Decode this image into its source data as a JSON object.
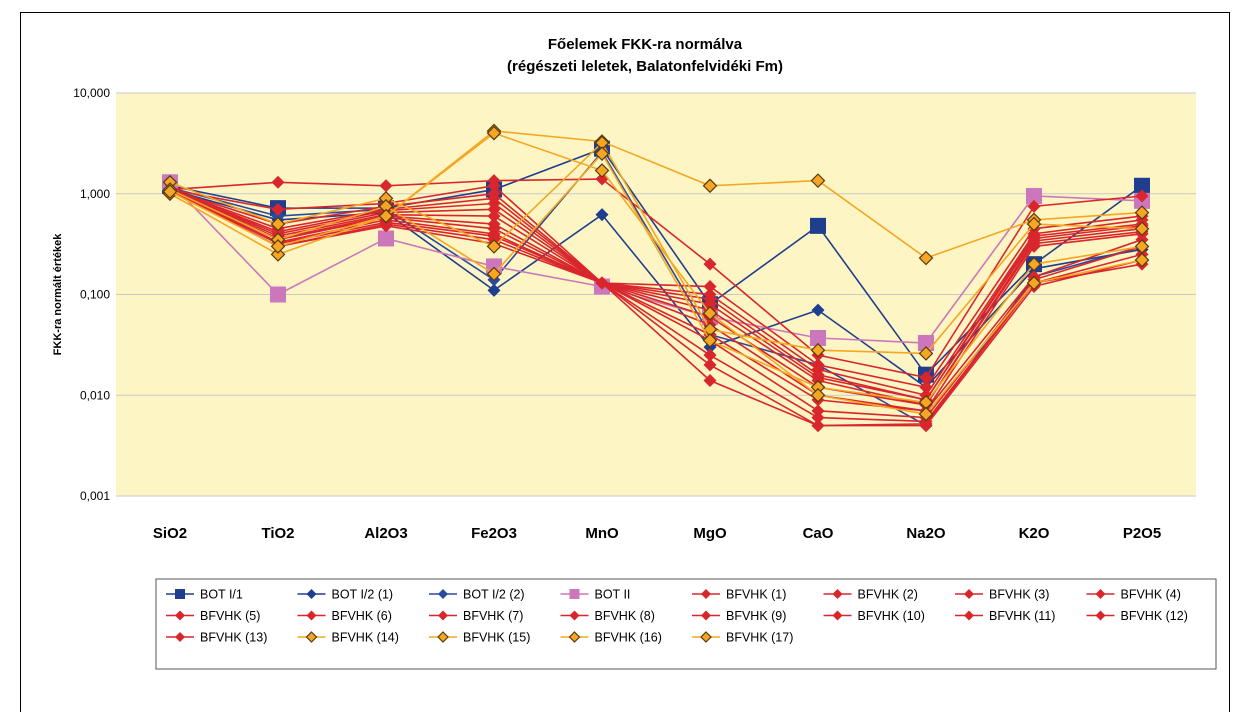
{
  "chart_data": {
    "type": "line",
    "title": "Főelemek FKK-ra normálva",
    "subtitle": "(régészeti leletek, Balatonfelvidéki Fm)",
    "ylabel": "FKK-ra normált értékek",
    "yscale": "log",
    "ylim": [
      0.001,
      10
    ],
    "yticks": [
      {
        "value": 10,
        "label": "10,000"
      },
      {
        "value": 1,
        "label": "1,000"
      },
      {
        "value": 0.1,
        "label": "0,100"
      },
      {
        "value": 0.01,
        "label": "0,010"
      },
      {
        "value": 0.001,
        "label": "0,001"
      }
    ],
    "grid": true,
    "legend_position": "bottom",
    "background_color": "#fdf6c4",
    "categories": [
      "SiO2",
      "TiO2",
      "Al2O3",
      "Fe2O3",
      "MnO",
      "MgO",
      "CaO",
      "Na2O",
      "K2O",
      "P2O5"
    ],
    "series": [
      {
        "name": "BOT I/1",
        "color": "#1f3e8e",
        "marker": "square",
        "values": [
          1.2,
          0.72,
          0.72,
          1.1,
          2.8,
          0.08,
          0.48,
          0.016,
          0.2,
          1.2
        ]
      },
      {
        "name": "BOT I/2 (1)",
        "color": "#1f3e8e",
        "marker": "diamond",
        "values": [
          1.1,
          0.55,
          0.65,
          0.11,
          0.62,
          0.03,
          0.07,
          0.012,
          0.18,
          0.28
        ]
      },
      {
        "name": "BOT I/2 (2)",
        "color": "#2a4a9e",
        "marker": "diamond",
        "values": [
          1.15,
          0.6,
          0.7,
          0.14,
          2.6,
          0.04,
          0.02,
          0.005,
          0.15,
          0.3
        ]
      },
      {
        "name": "BOT II",
        "color": "#cc77bb",
        "marker": "square",
        "values": [
          1.3,
          0.1,
          0.36,
          0.19,
          0.12,
          0.06,
          0.037,
          0.033,
          0.95,
          0.85
        ]
      },
      {
        "name": "BFVHK (1)",
        "color": "#d9262c",
        "marker": "diamond",
        "values": [
          1.1,
          1.3,
          1.2,
          1.35,
          1.4,
          0.2,
          0.025,
          0.015,
          0.75,
          0.95
        ]
      },
      {
        "name": "BFVHK (2)",
        "color": "#d9262c",
        "marker": "diamond",
        "values": [
          1.1,
          0.7,
          0.8,
          1.2,
          0.13,
          0.12,
          0.02,
          0.012,
          0.45,
          0.6
        ]
      },
      {
        "name": "BFVHK (3)",
        "color": "#d9262c",
        "marker": "diamond",
        "values": [
          1.1,
          0.5,
          0.75,
          1.0,
          0.13,
          0.1,
          0.018,
          0.01,
          0.4,
          0.55
        ]
      },
      {
        "name": "BFVHK (4)",
        "color": "#d9262c",
        "marker": "diamond",
        "values": [
          1.1,
          0.45,
          0.7,
          0.9,
          0.13,
          0.09,
          0.016,
          0.009,
          0.38,
          0.5
        ]
      },
      {
        "name": "BFVHK (5)",
        "color": "#d9262c",
        "marker": "diamond",
        "values": [
          1.1,
          0.42,
          0.68,
          0.8,
          0.13,
          0.08,
          0.015,
          0.009,
          0.36,
          0.48
        ]
      },
      {
        "name": "BFVHK (6)",
        "color": "#d9262c",
        "marker": "diamond",
        "values": [
          1.1,
          0.4,
          0.65,
          0.7,
          0.13,
          0.07,
          0.014,
          0.008,
          0.34,
          0.45
        ]
      },
      {
        "name": "BFVHK (7)",
        "color": "#d9262c",
        "marker": "diamond",
        "values": [
          1.1,
          0.38,
          0.62,
          0.6,
          0.13,
          0.06,
          0.012,
          0.008,
          0.32,
          0.42
        ]
      },
      {
        "name": "BFVHK (8)",
        "color": "#d9262c",
        "marker": "diamond",
        "values": [
          1.1,
          0.36,
          0.6,
          0.5,
          0.13,
          0.05,
          0.01,
          0.007,
          0.3,
          0.4
        ]
      },
      {
        "name": "BFVHK (9)",
        "color": "#d9262c",
        "marker": "diamond",
        "values": [
          1.1,
          0.35,
          0.58,
          0.45,
          0.13,
          0.04,
          0.009,
          0.007,
          0.15,
          0.35
        ]
      },
      {
        "name": "BFVHK (10)",
        "color": "#d9262c",
        "marker": "diamond",
        "values": [
          1.1,
          0.33,
          0.55,
          0.4,
          0.13,
          0.035,
          0.007,
          0.006,
          0.14,
          0.3
        ]
      },
      {
        "name": "BFVHK (11)",
        "color": "#d9262c",
        "marker": "diamond",
        "values": [
          1.1,
          0.32,
          0.52,
          0.38,
          0.13,
          0.025,
          0.006,
          0.0055,
          0.13,
          0.25
        ]
      },
      {
        "name": "BFVHK (12)",
        "color": "#d9262c",
        "marker": "diamond",
        "values": [
          1.1,
          0.3,
          0.5,
          0.35,
          0.13,
          0.02,
          0.005,
          0.0052,
          0.13,
          0.2
        ]
      },
      {
        "name": "BFVHK (13)",
        "color": "#d9262c",
        "marker": "diamond",
        "values": [
          1.1,
          0.3,
          0.48,
          0.32,
          0.13,
          0.014,
          0.005,
          0.005,
          0.12,
          0.22
        ]
      },
      {
        "name": "BFVHK (14)",
        "color": "#f5a623",
        "marker": "diamond-orange",
        "values": [
          1.0,
          0.25,
          0.6,
          4.2,
          3.3,
          1.2,
          1.35,
          0.23,
          0.55,
          0.65
        ]
      },
      {
        "name": "BFVHK (15)",
        "color": "#f5a623",
        "marker": "diamond-orange",
        "values": [
          1.3,
          0.5,
          0.9,
          0.3,
          3.2,
          0.045,
          0.028,
          0.026,
          0.5,
          0.45
        ]
      },
      {
        "name": "BFVHK (16)",
        "color": "#f5a623",
        "marker": "diamond-orange",
        "values": [
          1.1,
          0.35,
          0.75,
          0.16,
          2.5,
          0.035,
          0.012,
          0.0085,
          0.2,
          0.3
        ]
      },
      {
        "name": "BFVHK (17)",
        "color": "#f5a623",
        "marker": "diamond-orange",
        "values": [
          1.05,
          0.3,
          0.6,
          4.0,
          1.7,
          0.065,
          0.01,
          0.0065,
          0.13,
          0.22
        ]
      }
    ]
  }
}
